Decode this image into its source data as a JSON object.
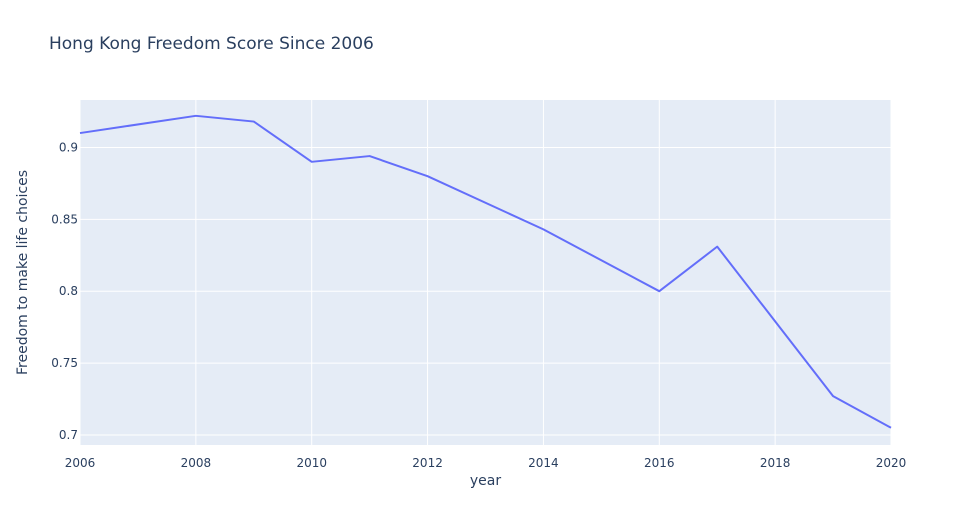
{
  "chart_data": {
    "type": "line",
    "title": "Hong Kong Freedom Score Since 2006",
    "xlabel": "year",
    "ylabel": "Freedom to make life choices",
    "xlim": [
      2006,
      2020
    ],
    "ylim": [
      0.693,
      0.933
    ],
    "x_ticks": [
      2006,
      2008,
      2010,
      2012,
      2014,
      2016,
      2018,
      2020
    ],
    "y_ticks": [
      0.7,
      0.75,
      0.8,
      0.85,
      0.9
    ],
    "y_tick_labels": [
      "0.7",
      "0.75",
      "0.8",
      "0.85",
      "0.9"
    ],
    "grid": true,
    "series": [
      {
        "x": [
          2006,
          2008,
          2009,
          2010,
          2011,
          2012,
          2014,
          2016,
          2017,
          2018,
          2019,
          2020
        ],
        "y": [
          0.91,
          0.922,
          0.918,
          0.89,
          0.894,
          0.88,
          0.843,
          0.8,
          0.831,
          0.779,
          0.727,
          0.705
        ]
      }
    ],
    "colors": {
      "plot_bg": "#e5ecf6",
      "grid": "#ffffff",
      "line": "#636efa",
      "text": "#2a3f5f"
    }
  }
}
